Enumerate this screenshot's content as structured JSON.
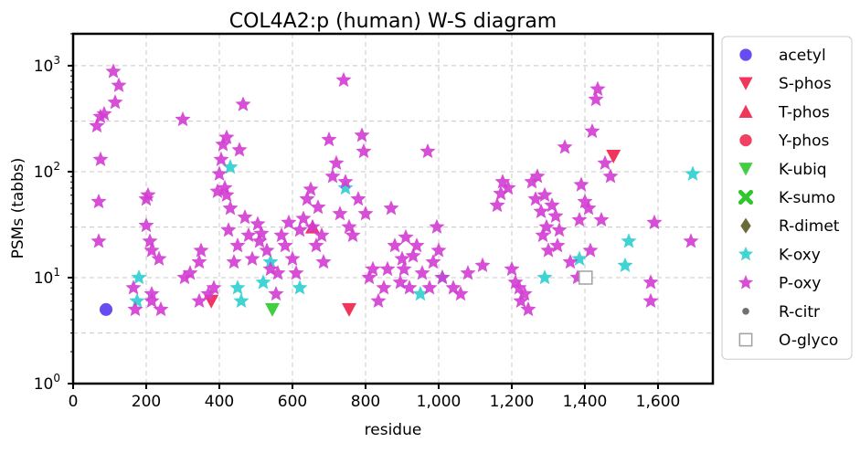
{
  "chart_data": {
    "type": "scatter",
    "title": "COL4A2:p (human) W-S diagram",
    "xlabel": "residue",
    "ylabel": "PSMs (tabbs)",
    "xlim": [
      0,
      1750
    ],
    "ylim": [
      1,
      2000
    ],
    "yscale": "log",
    "grid": true,
    "legend_position": "outside-right",
    "x_ticks": [
      0,
      200,
      400,
      600,
      800,
      1000,
      1200,
      1400,
      1600
    ],
    "x_tick_labels": [
      "0",
      "200",
      "400",
      "600",
      "800",
      "1,000",
      "1,200",
      "1,400",
      "1,600"
    ],
    "y_ticks": [
      1,
      10,
      100,
      1000
    ],
    "y_tick_labels": [
      {
        "base": "10",
        "exp": "0"
      },
      {
        "base": "10",
        "exp": "1"
      },
      {
        "base": "10",
        "exp": "2"
      },
      {
        "base": "10",
        "exp": "3"
      }
    ],
    "series": [
      {
        "name": "acetyl",
        "marker": "circle",
        "color": "#4a2ef0",
        "points": [
          [
            90,
            5
          ]
        ]
      },
      {
        "name": "S-phos",
        "marker": "triangle-down",
        "color": "#f0204a",
        "points": [
          [
            378,
            6
          ],
          [
            755,
            5
          ],
          [
            1478,
            140
          ]
        ]
      },
      {
        "name": "T-phos",
        "marker": "triangle-up",
        "color": "#f0204a",
        "points": [
          [
            655,
            30
          ]
        ]
      },
      {
        "name": "Y-phos",
        "marker": "circle",
        "color": "#f0204a",
        "points": []
      },
      {
        "name": "K-ubiq",
        "marker": "triangle-down",
        "color": "#2ec82e",
        "points": [
          [
            545,
            5
          ]
        ]
      },
      {
        "name": "K-sumo",
        "marker": "x",
        "color": "#2ec82e",
        "points": []
      },
      {
        "name": "R-dimet",
        "marker": "diamond",
        "color": "#6b6b3a",
        "points": []
      },
      {
        "name": "K-oxy",
        "marker": "star",
        "color": "#2ecfcf",
        "points": [
          [
            175,
            6
          ],
          [
            180,
            10
          ],
          [
            430,
            110
          ],
          [
            450,
            8
          ],
          [
            460,
            6
          ],
          [
            520,
            9
          ],
          [
            540,
            14
          ],
          [
            620,
            8
          ],
          [
            745,
            70
          ],
          [
            950,
            7
          ],
          [
            1010,
            10
          ],
          [
            1290,
            10
          ],
          [
            1385,
            15
          ],
          [
            1520,
            22
          ],
          [
            1510,
            13
          ],
          [
            1695,
            95
          ]
        ]
      },
      {
        "name": "P-oxy",
        "marker": "star",
        "color": "#d23cd2",
        "points": [
          [
            65,
            270
          ],
          [
            75,
            330
          ],
          [
            85,
            350
          ],
          [
            70,
            52
          ],
          [
            75,
            130
          ],
          [
            70,
            22
          ],
          [
            110,
            880
          ],
          [
            125,
            650
          ],
          [
            115,
            450
          ],
          [
            165,
            8
          ],
          [
            170,
            5
          ],
          [
            200,
            55
          ],
          [
            205,
            60
          ],
          [
            200,
            31
          ],
          [
            210,
            22
          ],
          [
            215,
            18
          ],
          [
            215,
            7
          ],
          [
            215,
            6
          ],
          [
            235,
            15
          ],
          [
            240,
            5
          ],
          [
            300,
            310
          ],
          [
            305,
            10
          ],
          [
            320,
            11
          ],
          [
            345,
            14
          ],
          [
            350,
            18
          ],
          [
            345,
            6
          ],
          [
            370,
            7
          ],
          [
            385,
            8
          ],
          [
            395,
            65
          ],
          [
            400,
            95
          ],
          [
            405,
            130
          ],
          [
            410,
            180
          ],
          [
            420,
            210
          ],
          [
            415,
            70
          ],
          [
            420,
            60
          ],
          [
            425,
            28
          ],
          [
            430,
            45
          ],
          [
            440,
            14
          ],
          [
            450,
            20
          ],
          [
            455,
            160
          ],
          [
            465,
            430
          ],
          [
            470,
            37
          ],
          [
            480,
            25
          ],
          [
            490,
            15
          ],
          [
            505,
            32
          ],
          [
            510,
            22
          ],
          [
            515,
            26
          ],
          [
            530,
            18
          ],
          [
            540,
            12
          ],
          [
            555,
            7
          ],
          [
            560,
            11
          ],
          [
            570,
            25
          ],
          [
            580,
            20
          ],
          [
            590,
            33
          ],
          [
            600,
            15
          ],
          [
            610,
            11
          ],
          [
            620,
            28
          ],
          [
            630,
            36
          ],
          [
            640,
            55
          ],
          [
            650,
            68
          ],
          [
            655,
            30
          ],
          [
            665,
            20
          ],
          [
            670,
            46
          ],
          [
            680,
            25
          ],
          [
            685,
            14
          ],
          [
            700,
            200
          ],
          [
            710,
            90
          ],
          [
            720,
            120
          ],
          [
            730,
            40
          ],
          [
            740,
            730
          ],
          [
            745,
            80
          ],
          [
            755,
            30
          ],
          [
            765,
            25
          ],
          [
            780,
            55
          ],
          [
            790,
            220
          ],
          [
            795,
            155
          ],
          [
            800,
            40
          ],
          [
            810,
            10
          ],
          [
            820,
            12
          ],
          [
            835,
            6
          ],
          [
            850,
            8
          ],
          [
            860,
            12
          ],
          [
            870,
            45
          ],
          [
            880,
            20
          ],
          [
            895,
            9
          ],
          [
            900,
            15
          ],
          [
            905,
            12
          ],
          [
            910,
            24
          ],
          [
            920,
            8
          ],
          [
            930,
            16
          ],
          [
            940,
            20
          ],
          [
            955,
            11
          ],
          [
            970,
            155
          ],
          [
            975,
            8
          ],
          [
            985,
            14
          ],
          [
            995,
            30
          ],
          [
            1000,
            18
          ],
          [
            1010,
            10
          ],
          [
            1040,
            8
          ],
          [
            1060,
            7
          ],
          [
            1080,
            11
          ],
          [
            1120,
            13
          ],
          [
            1160,
            48
          ],
          [
            1170,
            62
          ],
          [
            1175,
            80
          ],
          [
            1190,
            70
          ],
          [
            1200,
            12
          ],
          [
            1210,
            9
          ],
          [
            1220,
            8
          ],
          [
            1225,
            6
          ],
          [
            1235,
            7
          ],
          [
            1245,
            5
          ],
          [
            1255,
            80
          ],
          [
            1265,
            55
          ],
          [
            1270,
            90
          ],
          [
            1280,
            42
          ],
          [
            1285,
            25
          ],
          [
            1290,
            60
          ],
          [
            1295,
            30
          ],
          [
            1300,
            18
          ],
          [
            1310,
            48
          ],
          [
            1320,
            38
          ],
          [
            1325,
            20
          ],
          [
            1330,
            28
          ],
          [
            1345,
            170
          ],
          [
            1360,
            14
          ],
          [
            1380,
            10
          ],
          [
            1385,
            35
          ],
          [
            1390,
            75
          ],
          [
            1400,
            52
          ],
          [
            1410,
            45
          ],
          [
            1415,
            18
          ],
          [
            1420,
            240
          ],
          [
            1430,
            480
          ],
          [
            1435,
            600
          ],
          [
            1445,
            35
          ],
          [
            1455,
            120
          ],
          [
            1470,
            90
          ],
          [
            1580,
            9
          ],
          [
            1590,
            33
          ],
          [
            1580,
            6
          ],
          [
            1690,
            22
          ]
        ]
      },
      {
        "name": "R-citr",
        "marker": "small-circle",
        "color": "#707070",
        "points": []
      },
      {
        "name": "O-glyco",
        "marker": "square-open",
        "color": "#a0a0a0",
        "points": [
          [
            1402,
            10
          ]
        ]
      }
    ]
  }
}
